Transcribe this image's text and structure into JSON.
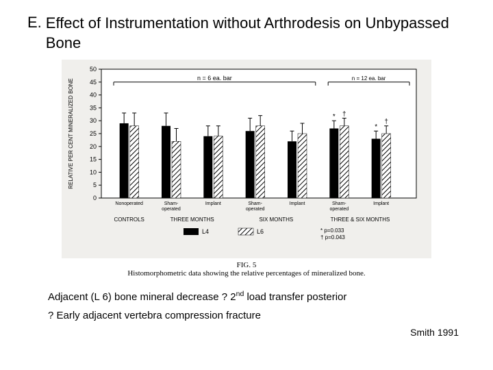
{
  "title": {
    "bullet": "E.",
    "text": "Effect of Instrumentation without Arthrodesis on Unbypassed Bone"
  },
  "chart": {
    "type": "bar",
    "ylabel": "RELATIVE PER CENT MINERALIZED BONE",
    "ylim": [
      0,
      50
    ],
    "ytick_step": 5,
    "axis_fontsize": 9,
    "n_annot_left": "n = 6 ea. bar",
    "n_annot_right": "n = 12 ea. bar",
    "colors": {
      "L4": "#000000",
      "L6_pattern": "hatch",
      "axis": "#000000",
      "bg": "#f0efec",
      "plot_bg": "#ffffff"
    },
    "bar_pairs": [
      {
        "group": "CONTROLS",
        "label": "Nonoperated",
        "L4": 29,
        "L6": 28,
        "errL4": 4,
        "errL6": 5
      },
      {
        "group": "THREE MONTHS",
        "label": "Sham-operated",
        "L4": 28,
        "L6": 22,
        "errL4": 5,
        "errL6": 5
      },
      {
        "group": "THREE MONTHS",
        "label": "Implant",
        "L4": 24,
        "L6": 24,
        "errL4": 4,
        "errL6": 4
      },
      {
        "group": "SIX MONTHS",
        "label": "Sham-operated",
        "L4": 26,
        "L6": 28,
        "errL4": 5,
        "errL6": 4
      },
      {
        "group": "SIX MONTHS",
        "label": "Implant",
        "L4": 22,
        "L6": 25,
        "errL4": 4,
        "errL6": 4
      },
      {
        "group": "THREE & SIX MONTHS",
        "label": "Sham-operated",
        "L4": 27,
        "L6": 28,
        "errL4": 3,
        "errL6": 3,
        "marks": [
          "*",
          "†"
        ]
      },
      {
        "group": "THREE & SIX MONTHS",
        "label": "Implant",
        "L4": 23,
        "L6": 25,
        "errL4": 3,
        "errL6": 3,
        "marks": [
          "*",
          "†"
        ]
      }
    ],
    "x_groups": [
      "CONTROLS",
      "THREE MONTHS",
      "SIX MONTHS",
      "THREE & SIX MONTHS"
    ],
    "legend": {
      "L4": "L4",
      "L6": "L6"
    },
    "sig": {
      "star": "* p=0.033",
      "dagger": "† p=0.043"
    },
    "fig_label": "FIG. 5",
    "caption": "Histomorphometric data showing the relative percentages of mineralized bone."
  },
  "note1_pre": "Adjacent (L 6) bone mineral decrease ? 2",
  "note1_ord": "nd",
  "note1_post": " load transfer posterior",
  "note2": "? Early adjacent vertebra compression fracture",
  "source": "Smith 1991"
}
